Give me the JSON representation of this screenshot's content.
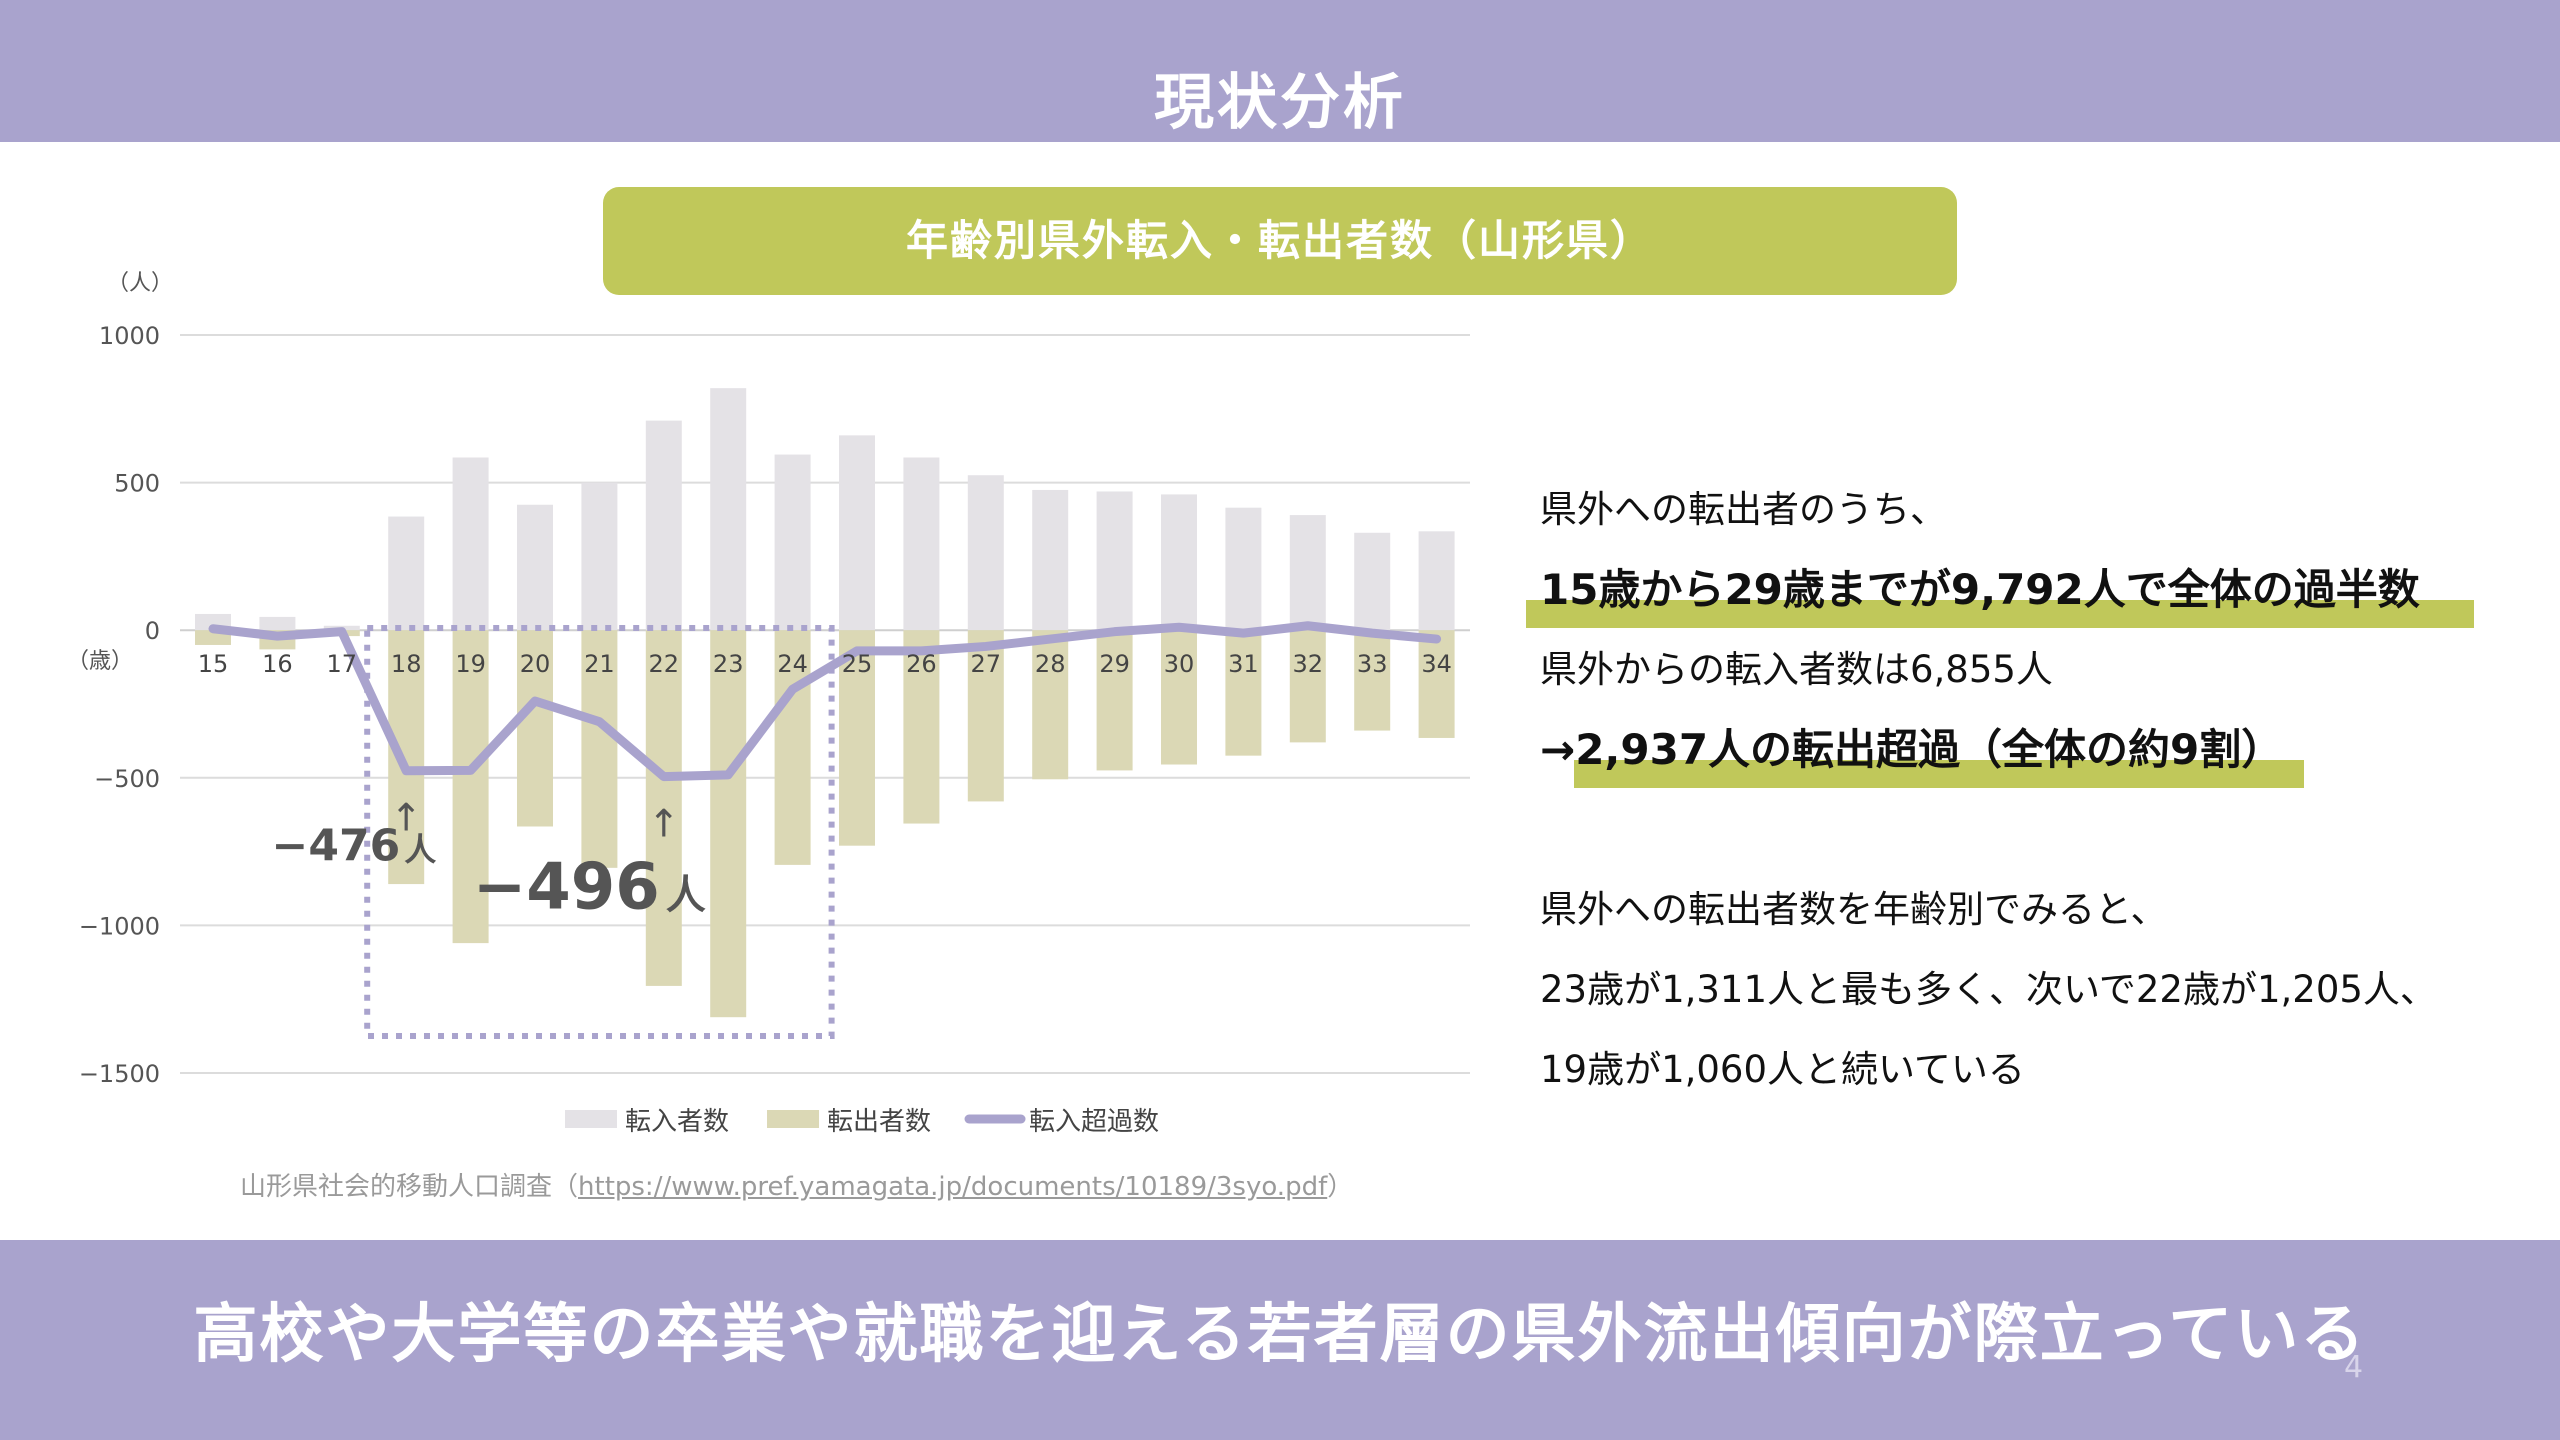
{
  "header": {
    "title": "現状分析"
  },
  "chart_title": "年齢別県外転入・転出者数（山形県）",
  "chart_data": {
    "type": "bar",
    "y_unit_label": "（人）",
    "x_unit_label": "（歳）",
    "categories": [
      "15",
      "16",
      "17",
      "18",
      "19",
      "20",
      "21",
      "22",
      "23",
      "24",
      "25",
      "26",
      "27",
      "28",
      "29",
      "30",
      "31",
      "32",
      "33",
      "34"
    ],
    "series": [
      {
        "name": "転入者数",
        "kind": "bar",
        "color": "#e4e2e6",
        "values": [
          55,
          45,
          15,
          385,
          585,
          425,
          500,
          710,
          820,
          595,
          660,
          585,
          525,
          475,
          470,
          460,
          415,
          390,
          330,
          335
        ]
      },
      {
        "name": "転出者数",
        "kind": "bar",
        "color": "#dbd8b5",
        "values": [
          -50,
          -65,
          -20,
          -860,
          -1060,
          -665,
          -805,
          -1205,
          -1311,
          -795,
          -730,
          -655,
          -580,
          -505,
          -475,
          -455,
          -425,
          -380,
          -340,
          -365
        ]
      },
      {
        "name": "転入超過数",
        "kind": "line",
        "color": "#a9a3cd",
        "values": [
          5,
          -20,
          -5,
          -476,
          -475,
          -240,
          -310,
          -496,
          -490,
          -200,
          -70,
          -70,
          -55,
          -30,
          -5,
          10,
          -10,
          15,
          -10,
          -30
        ]
      }
    ],
    "yticks": [
      1000,
      500,
      0,
      -500,
      -1000,
      -1500
    ],
    "ylim": [
      -1500,
      1000
    ],
    "grid": true,
    "legend": "bottom",
    "annotations": [
      {
        "text": "−476",
        "unit": "人",
        "category": "18"
      },
      {
        "text": "−496",
        "unit": "人",
        "category": "22"
      }
    ],
    "arrow_glyph": "↑",
    "highlight_range": [
      "18",
      "24"
    ]
  },
  "source": {
    "prefix": "山形県社会的移動人口調査（",
    "url": "https://www.pref.yamagata.jp/documents/10189/3syo.pdf",
    "suffix": "）"
  },
  "side": {
    "line1": "県外への転出者のうち、",
    "line2": "15歳から29歳までが9,792人で全体の過半数",
    "line3": "県外からの転入者数は6,855人",
    "line4": "→2,937人の転出超過（全体の約9割）",
    "line5": "県外への転出者数を年齢別でみると、",
    "line6": "23歳が1,311人と最も多く、次いで22歳が1,205人、",
    "line7": "19歳が1,060人と続いている"
  },
  "footer": {
    "message": "高校や大学等の卒業や就職を迎える若者層の県外流出傾向が際立っている",
    "page_number": "4"
  },
  "colors": {
    "band": "#a9a3cd",
    "accent": "#c0c85a"
  }
}
